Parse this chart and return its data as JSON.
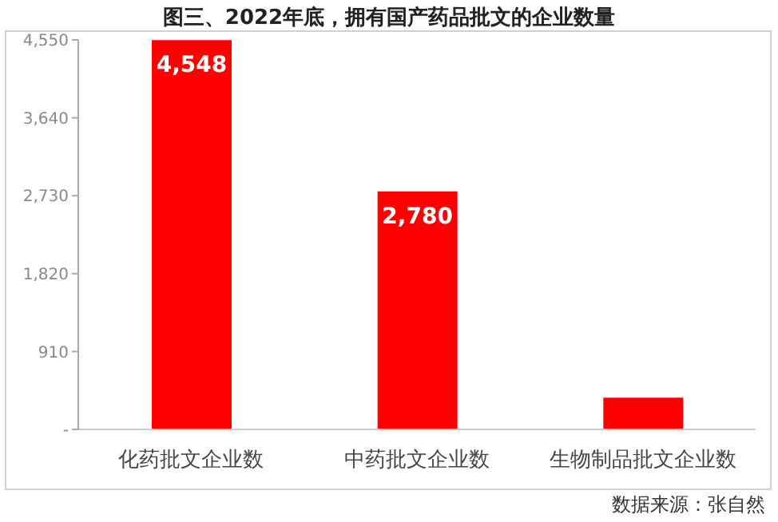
{
  "chart_data": {
    "type": "bar",
    "title": "图三、2022年底，拥有国产药品批文的企业数量",
    "categories": [
      "化药批文企业数",
      "中药批文企业数",
      "生物制品批文企业数"
    ],
    "values": [
      4548,
      2780,
      370
    ],
    "value_labels": [
      "4,548",
      "2,780",
      null
    ],
    "color": "#ff0000",
    "ylim": [
      0,
      4550
    ],
    "yticks": [
      {
        "value": 0,
        "label": "-"
      },
      910,
      {
        "value": 1820,
        "label": "1,820"
      },
      {
        "value": 2730,
        "label": "2,730"
      },
      {
        "value": 3640,
        "label": "3,640"
      },
      {
        "value": 4550,
        "label": "4,550"
      }
    ],
    "grid": false,
    "annotations": [
      "数据来源：张自然"
    ]
  }
}
